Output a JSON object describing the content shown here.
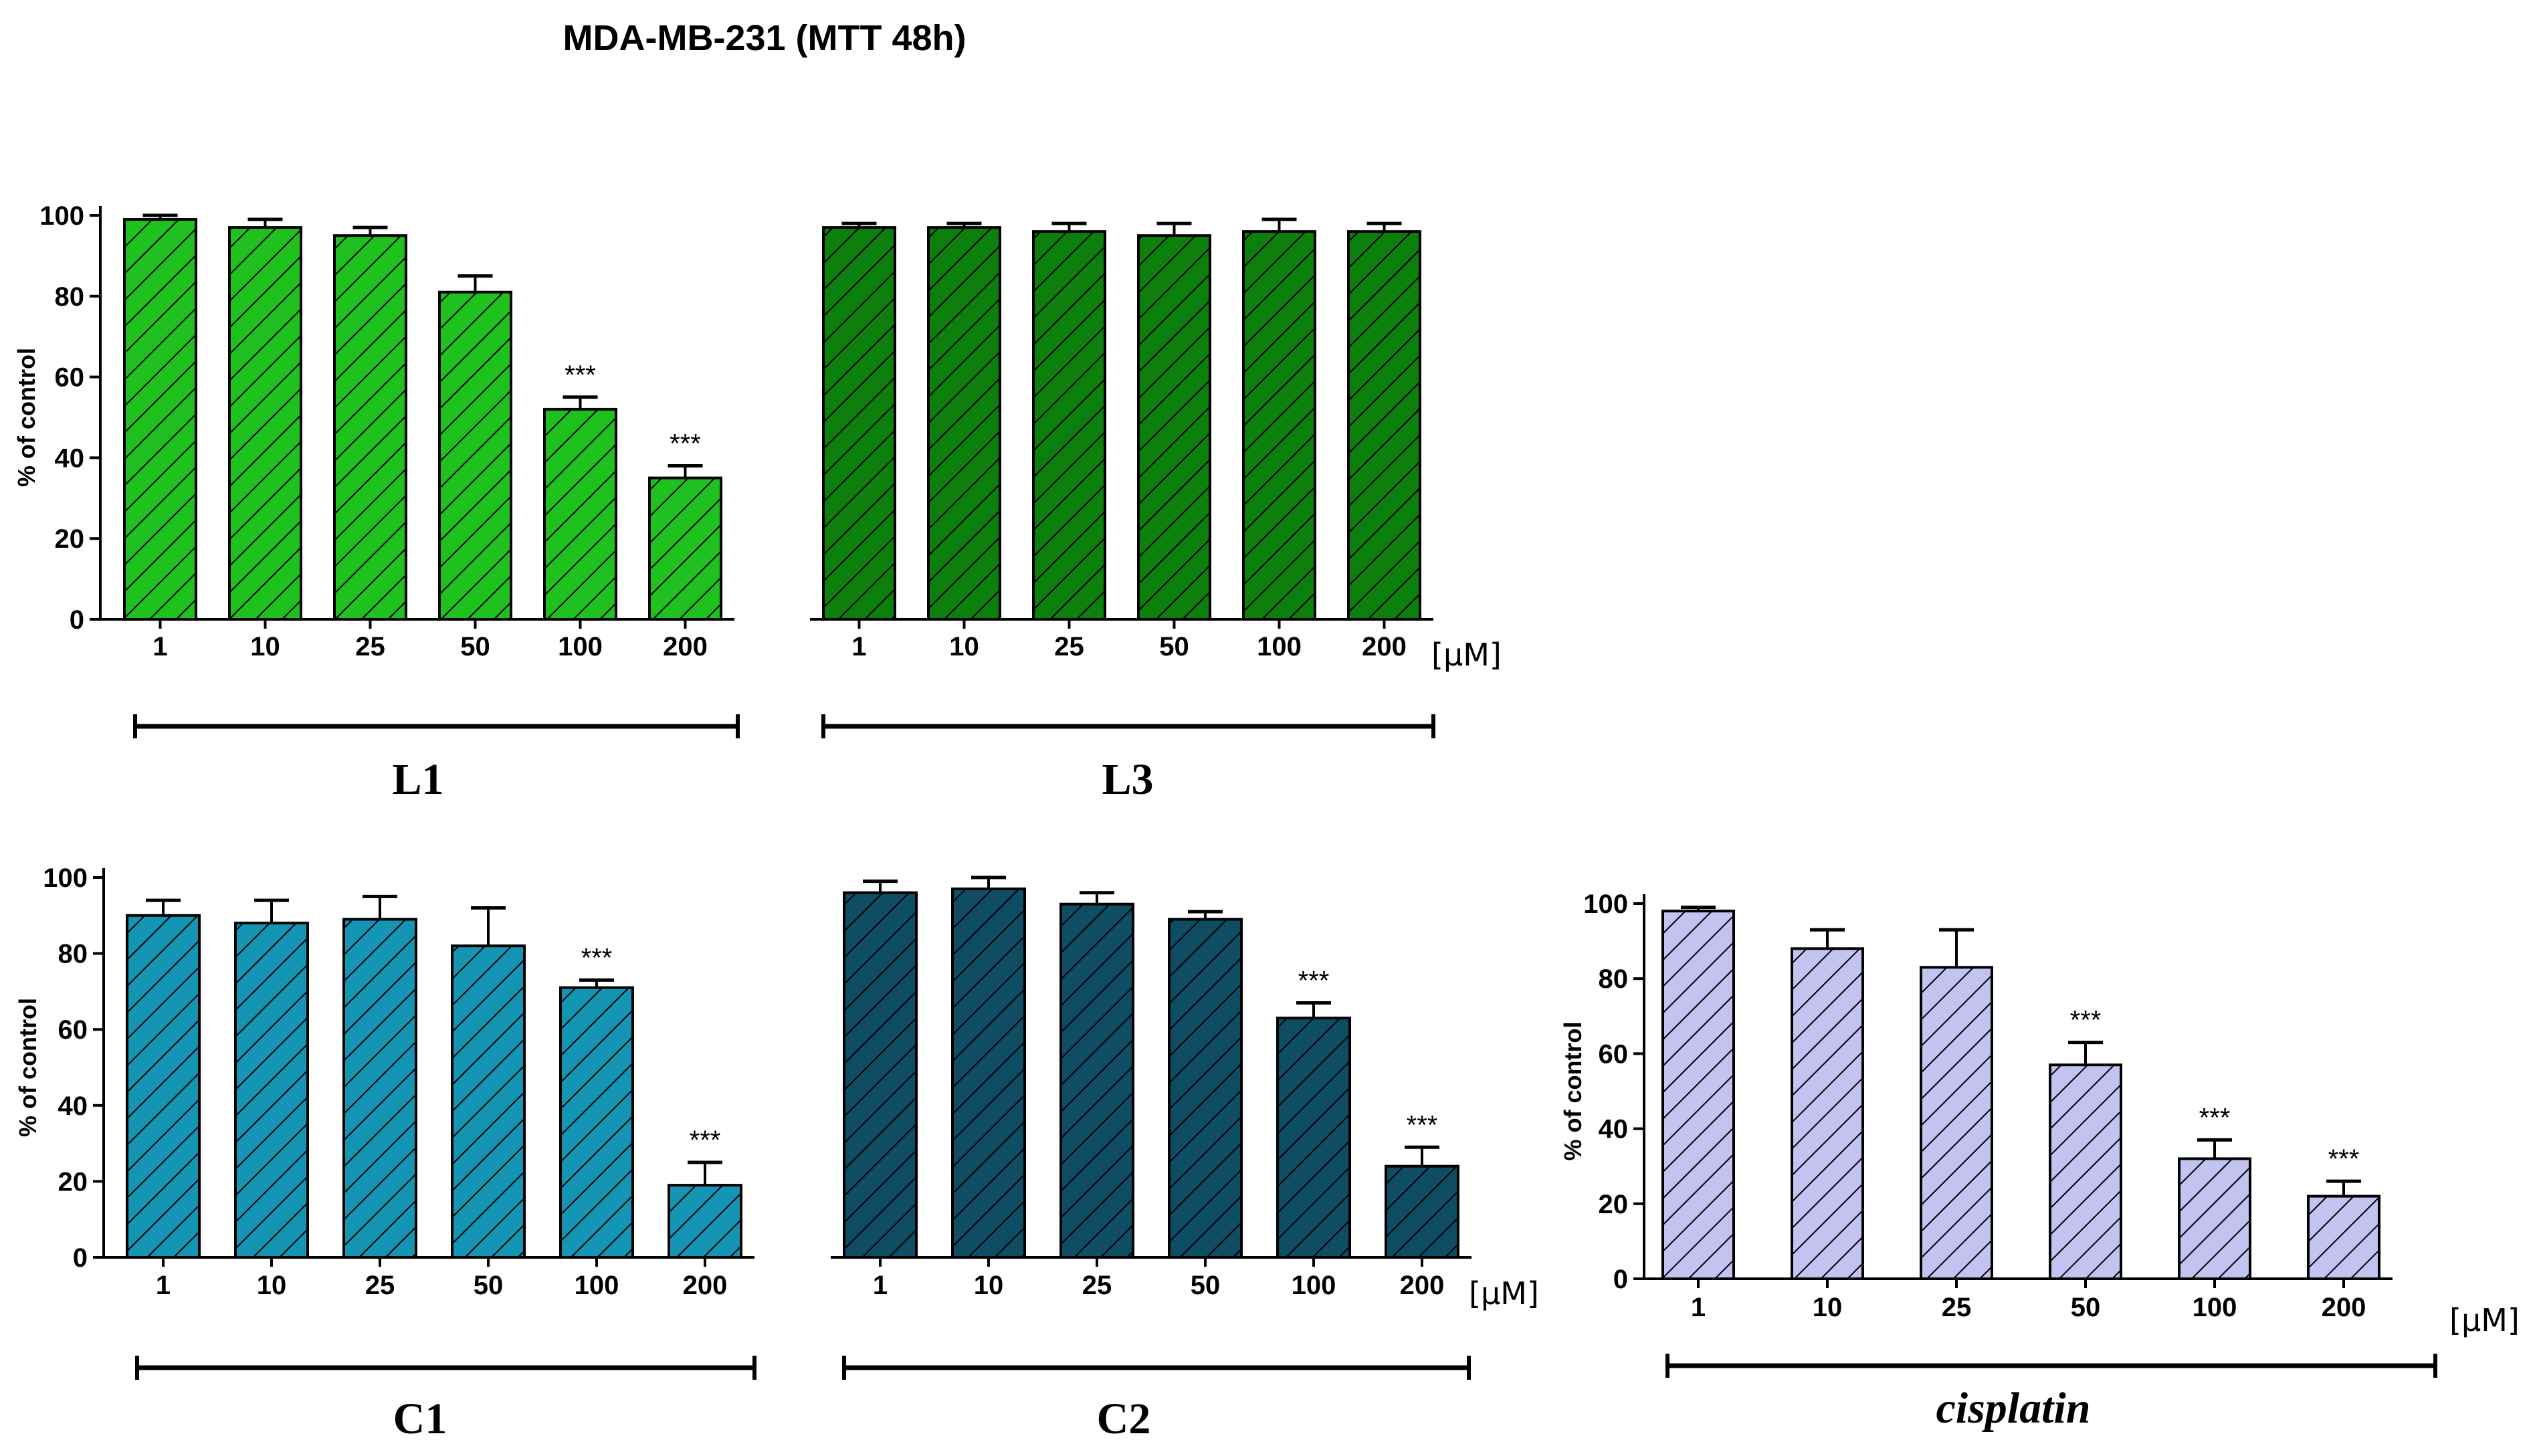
{
  "title": "MDA-MB-231 (MTT 48h)",
  "y_axis_label": "% of control",
  "unit_label": "[µM]",
  "significance_label": "***",
  "colors": {
    "L1": "#1fc11f",
    "L3": "#0d7f0d",
    "C1": "#1495b3",
    "C2": "#0e4d63",
    "cisplatin": "#c3c3f2",
    "axis": "#000000"
  },
  "chart_data": [
    {
      "type": "bar",
      "panel": "top",
      "ylabel": "% of control",
      "ylim": [
        0,
        100
      ],
      "yticks": [
        0,
        20,
        40,
        60,
        80,
        100
      ],
      "xlabel": "[µM]",
      "groups": [
        {
          "name": "L1",
          "color": "#1fc11f",
          "categories": [
            "1",
            "10",
            "25",
            "50",
            "100",
            "200"
          ],
          "values": [
            99,
            97,
            95,
            81,
            52,
            35
          ],
          "errors": [
            1,
            2,
            2,
            4,
            3,
            3
          ],
          "significance": [
            "",
            "",
            "",
            "",
            "***",
            "***"
          ]
        },
        {
          "name": "L3",
          "color": "#0d7f0d",
          "categories": [
            "1",
            "10",
            "25",
            "50",
            "100",
            "200"
          ],
          "values": [
            97,
            97,
            96,
            95,
            96,
            96
          ],
          "errors": [
            1,
            1,
            2,
            3,
            3,
            2
          ],
          "significance": [
            "",
            "",
            "",
            "",
            "",
            ""
          ]
        }
      ]
    },
    {
      "type": "bar",
      "panel": "bottom-left",
      "ylabel": "% of control",
      "ylim": [
        0,
        100
      ],
      "yticks": [
        0,
        20,
        40,
        60,
        80,
        100
      ],
      "xlabel": "[µM]",
      "groups": [
        {
          "name": "C1",
          "color": "#1495b3",
          "categories": [
            "1",
            "10",
            "25",
            "50",
            "100",
            "200"
          ],
          "values": [
            90,
            88,
            89,
            82,
            71,
            19
          ],
          "errors": [
            4,
            6,
            6,
            10,
            2,
            6
          ],
          "significance": [
            "",
            "",
            "",
            "",
            "***",
            "***"
          ]
        },
        {
          "name": "C2",
          "color": "#0e4d63",
          "categories": [
            "1",
            "10",
            "25",
            "50",
            "100",
            "200"
          ],
          "values": [
            96,
            97,
            93,
            89,
            63,
            24
          ],
          "errors": [
            3,
            3,
            3,
            2,
            4,
            5
          ],
          "significance": [
            "",
            "",
            "",
            "",
            "***",
            "***"
          ]
        }
      ]
    },
    {
      "type": "bar",
      "panel": "bottom-right",
      "ylabel": "% of control",
      "ylim": [
        0,
        100
      ],
      "yticks": [
        0,
        20,
        40,
        60,
        80,
        100
      ],
      "xlabel": "[µM]",
      "groups": [
        {
          "name": "cisplatin",
          "color": "#c3c3f2",
          "italic": true,
          "categories": [
            "1",
            "10",
            "25",
            "50",
            "100",
            "200"
          ],
          "values": [
            98,
            88,
            83,
            57,
            32,
            22
          ],
          "errors": [
            1,
            5,
            10,
            6,
            5,
            4
          ],
          "significance": [
            "",
            "",
            "",
            "***",
            "***",
            "***"
          ]
        }
      ]
    }
  ]
}
